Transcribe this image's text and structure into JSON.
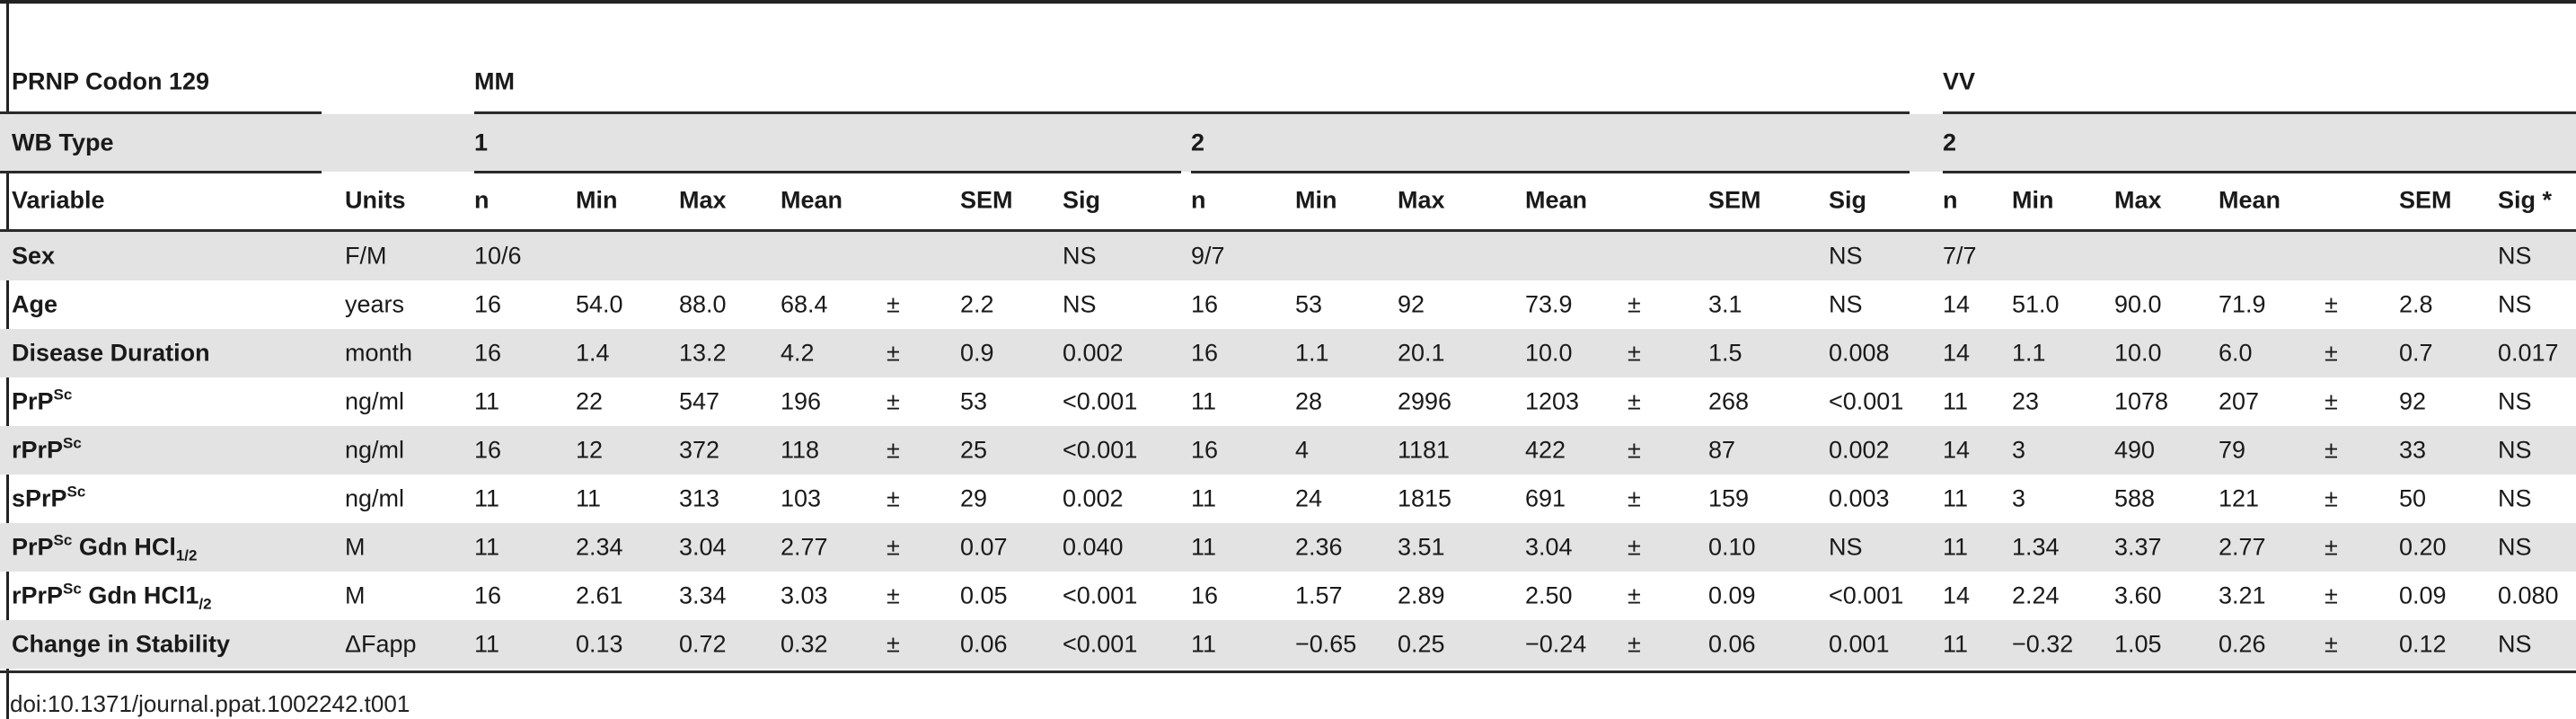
{
  "table": {
    "codon_label": "PRNP Codon 129",
    "genotypes": [
      "MM",
      "VV"
    ],
    "wb_type_label": "WB Type",
    "wb_types": [
      "1",
      "2",
      "2"
    ],
    "column_headers": [
      "Variable",
      "Units",
      "n",
      "Min",
      "Max",
      "Mean",
      "SEM",
      "Sig",
      "n",
      "Min",
      "Max",
      "Mean",
      "SEM",
      "Sig",
      "n",
      "Min",
      "Max",
      "Mean",
      "SEM",
      "Sig *"
    ],
    "pm": "±",
    "rows": [
      {
        "var": "Sex",
        "var_sup": "",
        "var_mid": "",
        "var_sub": "",
        "units": "F/M",
        "g": [
          {
            "n": "10/6",
            "min": "",
            "max": "",
            "mean": "",
            "pm": false,
            "sem": "",
            "sig": "NS"
          },
          {
            "n": "9/7",
            "min": "",
            "max": "",
            "mean": "",
            "pm": false,
            "sem": "",
            "sig": "NS"
          },
          {
            "n": "7/7",
            "min": "",
            "max": "",
            "mean": "",
            "pm": false,
            "sem": "",
            "sig": "NS"
          }
        ]
      },
      {
        "var": "Age",
        "var_sup": "",
        "var_mid": "",
        "var_sub": "",
        "units": "years",
        "g": [
          {
            "n": "16",
            "min": "54.0",
            "max": "88.0",
            "mean": "68.4",
            "pm": true,
            "sem": "2.2",
            "sig": "NS"
          },
          {
            "n": "16",
            "min": "53",
            "max": "92",
            "mean": "73.9",
            "pm": true,
            "sem": "3.1",
            "sig": "NS"
          },
          {
            "n": "14",
            "min": "51.0",
            "max": "90.0",
            "mean": "71.9",
            "pm": true,
            "sem": "2.8",
            "sig": "NS"
          }
        ]
      },
      {
        "var": "Disease Duration",
        "var_sup": "",
        "var_mid": "",
        "var_sub": "",
        "units": "month",
        "g": [
          {
            "n": "16",
            "min": "1.4",
            "max": "13.2",
            "mean": "4.2",
            "pm": true,
            "sem": "0.9",
            "sig": "0.002"
          },
          {
            "n": "16",
            "min": "1.1",
            "max": "20.1",
            "mean": "10.0",
            "pm": true,
            "sem": "1.5",
            "sig": "0.008"
          },
          {
            "n": "14",
            "min": "1.1",
            "max": "10.0",
            "mean": "6.0",
            "pm": true,
            "sem": "0.7",
            "sig": "0.017"
          }
        ]
      },
      {
        "var": "PrP",
        "var_sup": "Sc",
        "var_mid": "",
        "var_sub": "",
        "units": "ng/ml",
        "g": [
          {
            "n": "11",
            "min": "22",
            "max": "547",
            "mean": "196",
            "pm": true,
            "sem": "53",
            "sig": "<0.001"
          },
          {
            "n": "11",
            "min": "28",
            "max": "2996",
            "mean": "1203",
            "pm": true,
            "sem": "268",
            "sig": "<0.001"
          },
          {
            "n": "11",
            "min": "23",
            "max": "1078",
            "mean": "207",
            "pm": true,
            "sem": "92",
            "sig": "NS"
          }
        ]
      },
      {
        "var": "rPrP",
        "var_sup": "Sc",
        "var_mid": "",
        "var_sub": "",
        "units": "ng/ml",
        "g": [
          {
            "n": "16",
            "min": "12",
            "max": "372",
            "mean": "118",
            "pm": true,
            "sem": "25",
            "sig": "<0.001"
          },
          {
            "n": "16",
            "min": "4",
            "max": "1181",
            "mean": "422",
            "pm": true,
            "sem": "87",
            "sig": "0.002"
          },
          {
            "n": "14",
            "min": "3",
            "max": "490",
            "mean": "79",
            "pm": true,
            "sem": "33",
            "sig": "NS"
          }
        ]
      },
      {
        "var": "sPrP",
        "var_sup": "Sc",
        "var_mid": "",
        "var_sub": "",
        "units": "ng/ml",
        "g": [
          {
            "n": "11",
            "min": "11",
            "max": "313",
            "mean": "103",
            "pm": true,
            "sem": "29",
            "sig": "0.002"
          },
          {
            "n": "11",
            "min": "24",
            "max": "1815",
            "mean": "691",
            "pm": true,
            "sem": "159",
            "sig": "0.003"
          },
          {
            "n": "11",
            "min": "3",
            "max": "588",
            "mean": "121",
            "pm": true,
            "sem": "50",
            "sig": "NS"
          }
        ]
      },
      {
        "var": "PrP",
        "var_sup": "Sc",
        "var_mid": " Gdn HCl",
        "var_sub": "1/2",
        "units": "M",
        "g": [
          {
            "n": "11",
            "min": "2.34",
            "max": "3.04",
            "mean": "2.77",
            "pm": true,
            "sem": "0.07",
            "sig": "0.040"
          },
          {
            "n": "11",
            "min": "2.36",
            "max": "3.51",
            "mean": "3.04",
            "pm": true,
            "sem": "0.10",
            "sig": "NS"
          },
          {
            "n": "11",
            "min": "1.34",
            "max": "3.37",
            "mean": "2.77",
            "pm": true,
            "sem": "0.20",
            "sig": "NS"
          }
        ]
      },
      {
        "var": "rPrP",
        "var_sup": "Sc",
        "var_mid": " Gdn HCl1",
        "var_sub": "/2",
        "units": "M",
        "g": [
          {
            "n": "16",
            "min": "2.61",
            "max": "3.34",
            "mean": "3.03",
            "pm": true,
            "sem": "0.05",
            "sig": "<0.001"
          },
          {
            "n": "16",
            "min": "1.57",
            "max": "2.89",
            "mean": "2.50",
            "pm": true,
            "sem": "0.09",
            "sig": "<0.001"
          },
          {
            "n": "14",
            "min": "2.24",
            "max": "3.60",
            "mean": "3.21",
            "pm": true,
            "sem": "0.09",
            "sig": "0.080"
          }
        ]
      },
      {
        "var": "Change in Stability",
        "var_sup": "",
        "var_mid": "",
        "var_sub": "",
        "units": "ΔFapp",
        "g": [
          {
            "n": "11",
            "min": "0.13",
            "max": "0.72",
            "mean": "0.32",
            "pm": true,
            "sem": "0.06",
            "sig": "<0.001"
          },
          {
            "n": "11",
            "min": "−0.65",
            "max": "0.25",
            "mean": "−0.24",
            "pm": true,
            "sem": "0.06",
            "sig": "0.001"
          },
          {
            "n": "11",
            "min": "−0.32",
            "max": "1.05",
            "mean": "0.26",
            "pm": true,
            "sem": "0.12",
            "sig": "NS"
          }
        ]
      }
    ],
    "doi": "doi:10.1371/journal.ppat.1002242.t001"
  }
}
